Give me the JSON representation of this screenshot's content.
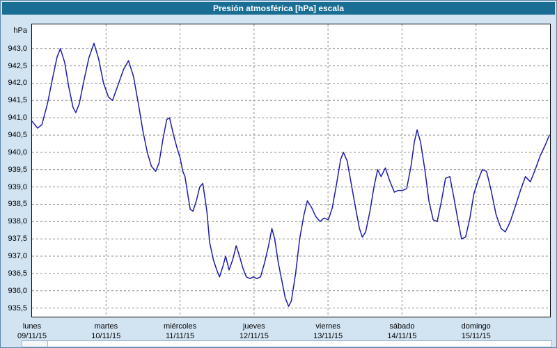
{
  "title_bar": {
    "title": "Presión atmosférica [hPa] escala"
  },
  "colors": {
    "title_bar_bg": "#1a6e94",
    "window_bg": "#d2e4f2",
    "window_border": "#5b87ad",
    "plot_bg": "#ffffff",
    "grid": "#8c8c8c",
    "line": "#1c1ca8"
  },
  "chart_data": {
    "type": "line",
    "title": "Presión atmosférica [hPa] escala",
    "ylabel": "hPa",
    "xlabel": "",
    "ylim": [
      935.25,
      943.7
    ],
    "x_hours_range": [
      0,
      168
    ],
    "grid": "dashed",
    "legend": "none",
    "y_ticks": [
      "943,0",
      "942,5",
      "942,0",
      "941,5",
      "941,0",
      "940,5",
      "940,0",
      "939,5",
      "939,0",
      "938,5",
      "938,0",
      "937,5",
      "937,0",
      "936,5",
      "936,0",
      "935,5"
    ],
    "x_days": [
      {
        "name": "lunes",
        "date": "09/11/15"
      },
      {
        "name": "martes",
        "date": "10/11/15"
      },
      {
        "name": "miércoles",
        "date": "11/11/15"
      },
      {
        "name": "jueves",
        "date": "12/11/15"
      },
      {
        "name": "viernes",
        "date": "13/11/15"
      },
      {
        "name": "sábado",
        "date": "14/11/15"
      },
      {
        "name": "domingo",
        "date": "15/11/15"
      }
    ],
    "series": [
      {
        "name": "Presión atmosférica [hPa]",
        "points": [
          [
            0,
            940.9
          ],
          [
            1.8,
            940.7
          ],
          [
            3.2,
            940.8
          ],
          [
            5,
            941.4
          ],
          [
            6.8,
            942.2
          ],
          [
            8.1,
            942.75
          ],
          [
            9.2,
            943.0
          ],
          [
            10.6,
            942.6
          ],
          [
            11.9,
            941.9
          ],
          [
            13.3,
            941.3
          ],
          [
            14.2,
            941.15
          ],
          [
            15.3,
            941.4
          ],
          [
            16.9,
            942.1
          ],
          [
            18.5,
            942.75
          ],
          [
            20.1,
            943.15
          ],
          [
            21.6,
            942.7
          ],
          [
            23.2,
            942.0
          ],
          [
            24.8,
            941.6
          ],
          [
            26.1,
            941.5
          ],
          [
            27.7,
            941.9
          ],
          [
            29.7,
            942.4
          ],
          [
            31.3,
            942.65
          ],
          [
            32.9,
            942.2
          ],
          [
            34.5,
            941.4
          ],
          [
            36,
            940.6
          ],
          [
            37.4,
            940.0
          ],
          [
            38.7,
            939.6
          ],
          [
            40.1,
            939.45
          ],
          [
            41.2,
            939.7
          ],
          [
            42.5,
            940.4
          ],
          [
            43.7,
            940.95
          ],
          [
            44.6,
            941.0
          ],
          [
            45.9,
            940.5
          ],
          [
            47.1,
            940.1
          ],
          [
            48,
            939.85
          ],
          [
            48.9,
            939.45
          ],
          [
            49.6,
            939.3
          ],
          [
            50.5,
            938.8
          ],
          [
            51.3,
            938.35
          ],
          [
            52.2,
            938.3
          ],
          [
            53.3,
            938.6
          ],
          [
            54.4,
            939.0
          ],
          [
            55.4,
            939.1
          ],
          [
            56.7,
            938.3
          ],
          [
            57.6,
            937.4
          ],
          [
            58.8,
            936.9
          ],
          [
            59.9,
            936.6
          ],
          [
            60.8,
            936.4
          ],
          [
            61.9,
            936.7
          ],
          [
            62.8,
            937.0
          ],
          [
            63.9,
            936.6
          ],
          [
            65.1,
            936.9
          ],
          [
            66.2,
            937.3
          ],
          [
            67.3,
            937.0
          ],
          [
            68.4,
            936.65
          ],
          [
            69.5,
            936.4
          ],
          [
            70.7,
            936.35
          ],
          [
            71.8,
            936.4
          ],
          [
            72.9,
            936.35
          ],
          [
            74.1,
            936.4
          ],
          [
            75.4,
            936.8
          ],
          [
            76.7,
            937.3
          ],
          [
            77.8,
            937.8
          ],
          [
            78.7,
            937.5
          ],
          [
            79.9,
            936.8
          ],
          [
            81,
            936.3
          ],
          [
            82.1,
            935.8
          ],
          [
            83.2,
            935.55
          ],
          [
            84.1,
            935.7
          ],
          [
            85.5,
            936.5
          ],
          [
            86.8,
            937.5
          ],
          [
            88.2,
            938.2
          ],
          [
            89.3,
            938.6
          ],
          [
            90.7,
            938.4
          ],
          [
            92,
            938.15
          ],
          [
            93.4,
            938.0
          ],
          [
            94.7,
            938.1
          ],
          [
            96.1,
            938.05
          ],
          [
            97.4,
            938.4
          ],
          [
            98.8,
            939.1
          ],
          [
            100.1,
            939.8
          ],
          [
            101,
            940.0
          ],
          [
            102.2,
            939.75
          ],
          [
            103.5,
            939.1
          ],
          [
            104.9,
            938.4
          ],
          [
            106.2,
            937.8
          ],
          [
            107.1,
            937.55
          ],
          [
            108.2,
            937.7
          ],
          [
            109.6,
            938.3
          ],
          [
            110.9,
            939.0
          ],
          [
            112.1,
            939.5
          ],
          [
            113.2,
            939.3
          ],
          [
            114.6,
            939.55
          ],
          [
            115.9,
            939.2
          ],
          [
            117.5,
            938.85
          ],
          [
            118.8,
            938.9
          ],
          [
            120.2,
            938.9
          ],
          [
            121.5,
            938.95
          ],
          [
            122.9,
            939.6
          ],
          [
            124,
            940.3
          ],
          [
            124.9,
            940.65
          ],
          [
            126,
            940.3
          ],
          [
            127.4,
            939.5
          ],
          [
            128.7,
            938.6
          ],
          [
            130.1,
            938.05
          ],
          [
            131.4,
            938.0
          ],
          [
            132.8,
            938.6
          ],
          [
            134.1,
            939.25
          ],
          [
            135.5,
            939.3
          ],
          [
            136.8,
            938.7
          ],
          [
            138.2,
            938.0
          ],
          [
            139.3,
            937.5
          ],
          [
            140.6,
            937.55
          ],
          [
            142,
            938.1
          ],
          [
            143.3,
            938.8
          ],
          [
            144.7,
            939.2
          ],
          [
            146,
            939.5
          ],
          [
            147.4,
            939.45
          ],
          [
            148.9,
            938.9
          ],
          [
            150.5,
            938.2
          ],
          [
            152.1,
            937.8
          ],
          [
            153.5,
            937.7
          ],
          [
            155.1,
            938.0
          ],
          [
            156.6,
            938.4
          ],
          [
            158.4,
            938.9
          ],
          [
            160,
            939.3
          ],
          [
            161.6,
            939.15
          ],
          [
            163.2,
            939.5
          ],
          [
            164.8,
            939.9
          ],
          [
            166.4,
            940.2
          ],
          [
            167.8,
            940.5
          ]
        ]
      }
    ]
  }
}
